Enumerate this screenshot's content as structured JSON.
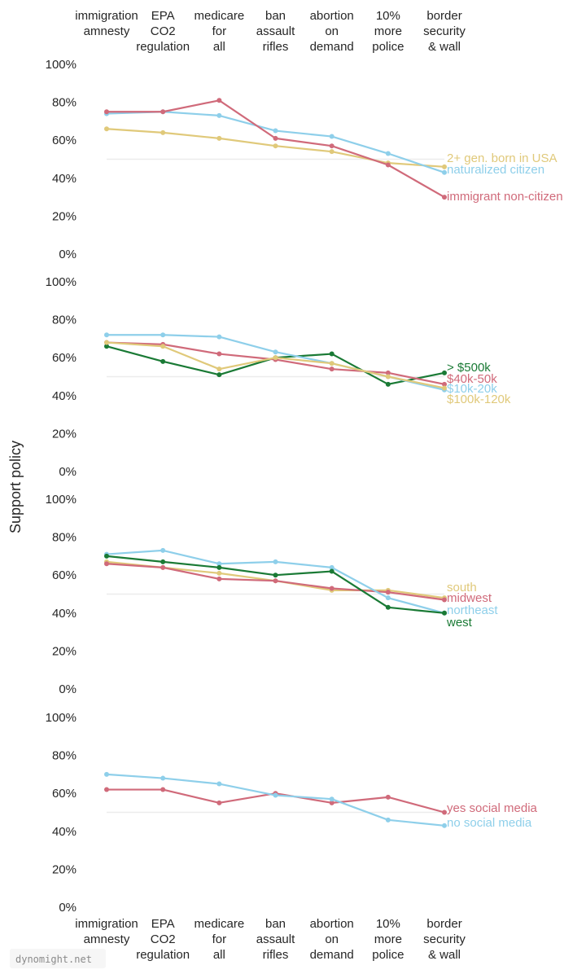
{
  "y_axis_label": "Support policy",
  "watermark": "dynomight.net",
  "chart_data": {
    "type": "line",
    "categories": [
      [
        "immigration",
        "amnesty"
      ],
      [
        "EPA",
        "CO2",
        "regulation"
      ],
      [
        "medicare",
        "for",
        "all"
      ],
      [
        "ban",
        "assault",
        "rifles"
      ],
      [
        "abortion",
        "on",
        "demand"
      ],
      [
        "10%",
        "more",
        "police"
      ],
      [
        "border",
        "security",
        "& wall"
      ]
    ],
    "yticks": [
      "0%",
      "20%",
      "40%",
      "60%",
      "80%",
      "100%"
    ],
    "ylim": [
      0,
      100
    ],
    "reference_line": 50,
    "panels": [
      {
        "series": [
          {
            "name": "2+ gen. born in USA",
            "color": "#e0c97a",
            "values": [
              66,
              64,
              61,
              57,
              54,
              48,
              46
            ]
          },
          {
            "name": "naturalized citizen",
            "color": "#8ecfea",
            "values": [
              74,
              75,
              73,
              65,
              62,
              53,
              43
            ]
          },
          {
            "name": "immigrant non-citizen",
            "color": "#d06a7a",
            "values": [
              75,
              75,
              81,
              61,
              57,
              47,
              30
            ]
          }
        ]
      },
      {
        "series": [
          {
            "name": "> $500k",
            "color": "#1a7a35",
            "values": [
              66,
              58,
              51,
              60,
              62,
              46,
              52
            ]
          },
          {
            "name": "$40k-50k",
            "color": "#d06a7a",
            "values": [
              68,
              67,
              62,
              59,
              54,
              52,
              46
            ]
          },
          {
            "name": "$10k-20k",
            "color": "#8ecfea",
            "values": [
              72,
              72,
              71,
              63,
              57,
              50,
              43
            ]
          },
          {
            "name": "$100k-120k",
            "color": "#e0c97a",
            "values": [
              68,
              66,
              54,
              60,
              57,
              50,
              44
            ]
          }
        ]
      },
      {
        "series": [
          {
            "name": "south",
            "color": "#e0c97a",
            "values": [
              67,
              64,
              61,
              57,
              52,
              52,
              48
            ]
          },
          {
            "name": "midwest",
            "color": "#d06a7a",
            "values": [
              66,
              64,
              58,
              57,
              53,
              51,
              47
            ]
          },
          {
            "name": "northeast",
            "color": "#8ecfea",
            "values": [
              71,
              73,
              66,
              67,
              64,
              48,
              40
            ]
          },
          {
            "name": "west",
            "color": "#1a7a35",
            "values": [
              70,
              67,
              64,
              60,
              62,
              43,
              40
            ]
          }
        ]
      },
      {
        "series": [
          {
            "name": "yes social media",
            "color": "#d06a7a",
            "values": [
              62,
              62,
              55,
              60,
              55,
              58,
              50
            ]
          },
          {
            "name": "no social media",
            "color": "#8ecfea",
            "values": [
              70,
              68,
              65,
              59,
              57,
              46,
              43
            ]
          }
        ]
      }
    ]
  }
}
